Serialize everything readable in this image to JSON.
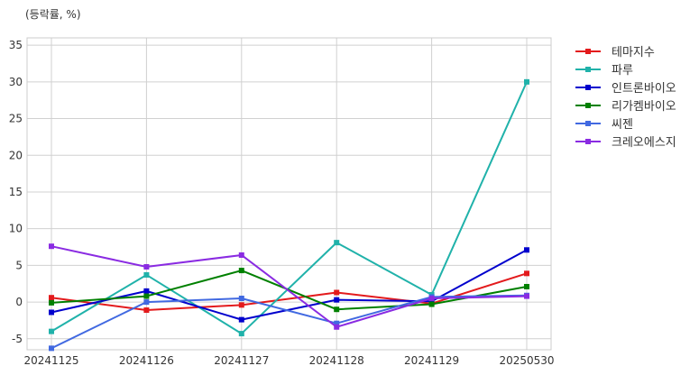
{
  "chart_data": {
    "type": "line",
    "unit_label": "(등락률, %)",
    "categories": [
      "20241125",
      "20241126",
      "20241127",
      "20241128",
      "20241129",
      "20250530"
    ],
    "y_ticks": [
      -5,
      0,
      5,
      10,
      15,
      20,
      25,
      30,
      35
    ],
    "ylim": [
      -6.5,
      36
    ],
    "grid": true,
    "legend_position": "right-top",
    "series": [
      {
        "name": "테마지수",
        "color": "#e31a1c",
        "values": [
          0.6,
          -1.1,
          -0.4,
          1.3,
          -0.2,
          3.9
        ]
      },
      {
        "name": "파루",
        "color": "#20b2aa",
        "values": [
          -4.0,
          3.7,
          -4.3,
          8.1,
          1.0,
          30.0
        ]
      },
      {
        "name": "인트론바이오",
        "color": "#0000cd",
        "values": [
          -1.4,
          1.5,
          -2.4,
          0.3,
          0.1,
          7.1
        ]
      },
      {
        "name": "리가켐바이오",
        "color": "#008000",
        "values": [
          -0.1,
          0.8,
          4.3,
          -1.0,
          -0.3,
          2.1
        ]
      },
      {
        "name": "씨젠",
        "color": "#4169e1",
        "values": [
          -6.3,
          0.0,
          0.5,
          -2.9,
          0.7,
          0.9
        ]
      },
      {
        "name": "크레오에스지",
        "color": "#8a2be2",
        "values": [
          7.6,
          4.8,
          6.4,
          -3.4,
          0.5,
          0.8
        ]
      }
    ]
  }
}
